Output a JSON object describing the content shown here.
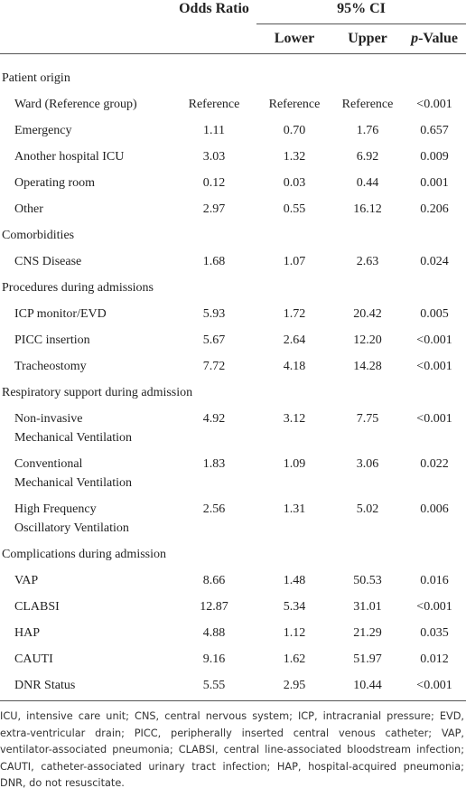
{
  "table": {
    "header": {
      "odds_ratio": "Odds Ratio",
      "ci": "95% CI",
      "lower": "Lower",
      "upper": "Upper",
      "p_italic": "p",
      "p_rest": "-Value"
    },
    "rows": [
      {
        "section": "Patient origin"
      },
      {
        "label": [
          "Ward (Reference group)"
        ],
        "cells": [
          "Reference",
          "Reference",
          "Reference",
          "<0.001"
        ]
      },
      {
        "label": [
          "Emergency"
        ],
        "cells": [
          "1.11",
          "0.70",
          "1.76",
          "0.657"
        ]
      },
      {
        "label": [
          "Another hospital ICU"
        ],
        "cells": [
          "3.03",
          "1.32",
          "6.92",
          "0.009"
        ]
      },
      {
        "label": [
          "Operating room"
        ],
        "cells": [
          "0.12",
          "0.03",
          "0.44",
          "0.001"
        ]
      },
      {
        "label": [
          "Other"
        ],
        "cells": [
          "2.97",
          "0.55",
          "16.12",
          "0.206"
        ]
      },
      {
        "section": "Comorbidities"
      },
      {
        "label": [
          "CNS Disease"
        ],
        "cells": [
          "1.68",
          "1.07",
          "2.63",
          "0.024"
        ]
      },
      {
        "section": "Procedures during admissions"
      },
      {
        "label": [
          "ICP monitor/EVD"
        ],
        "cells": [
          "5.93",
          "1.72",
          "20.42",
          "0.005"
        ]
      },
      {
        "label": [
          "PICC insertion"
        ],
        "cells": [
          "5.67",
          "2.64",
          "12.20",
          "<0.001"
        ]
      },
      {
        "label": [
          "Tracheostomy"
        ],
        "cells": [
          "7.72",
          "4.18",
          "14.28",
          "<0.001"
        ]
      },
      {
        "section": "Respiratory support during admission"
      },
      {
        "label": [
          "Non-invasive",
          "Mechanical Ventilation"
        ],
        "cells": [
          "4.92",
          "3.12",
          "7.75",
          "<0.001"
        ]
      },
      {
        "label": [
          "Conventional",
          "Mechanical Ventilation"
        ],
        "cells": [
          "1.83",
          "1.09",
          "3.06",
          "0.022"
        ]
      },
      {
        "label": [
          "High Frequency",
          "Oscillatory Ventilation"
        ],
        "cells": [
          "2.56",
          "1.31",
          "5.02",
          "0.006"
        ]
      },
      {
        "section": "Complications during admission"
      },
      {
        "label": [
          "VAP"
        ],
        "cells": [
          "8.66",
          "1.48",
          "50.53",
          "0.016"
        ]
      },
      {
        "label": [
          "CLABSI"
        ],
        "cells": [
          "12.87",
          "5.34",
          "31.01",
          "<0.001"
        ]
      },
      {
        "label": [
          "HAP"
        ],
        "cells": [
          "4.88",
          "1.12",
          "21.29",
          "0.035"
        ]
      },
      {
        "label": [
          "CAUTI"
        ],
        "cells": [
          "9.16",
          "1.62",
          "51.97",
          "0.012"
        ]
      },
      {
        "label": [
          "DNR Status"
        ],
        "cells": [
          "5.55",
          "2.95",
          "10.44",
          "<0.001"
        ]
      }
    ],
    "footnote": "ICU, intensive care unit; CNS, central nervous system; ICP, intracranial pressure; EVD, extra-ventricular drain; PICC, peripherally inserted central venous catheter; VAP, ventilator-associated pneumonia; CLABSI, central line-associated bloodstream infection; CAUTI, catheter-associated urinary tract infection; HAP, hospital-acquired pneumonia; DNR, do not resuscitate."
  }
}
